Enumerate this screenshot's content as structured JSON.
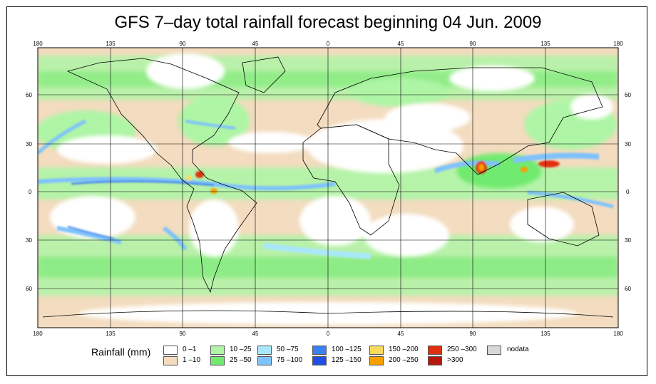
{
  "title": "GFS 7–day total rainfall forecast beginning 04 Jun. 2009",
  "map": {
    "lon_ticks": [
      "180",
      "135",
      "90",
      "45",
      "0",
      "45",
      "90",
      "135",
      "180"
    ],
    "lat_ticks": [
      "60",
      "30",
      "0",
      "30",
      "60"
    ],
    "colors": {
      "ocean_dry": "#ffffff",
      "light": "#f3dcbf",
      "green_light": "#aef5a6",
      "green": "#71ea6f",
      "cyan": "#a9e7fb",
      "sky": "#7fc2fb",
      "blue": "#3c7ff1",
      "deep_blue": "#1f4fe0",
      "yellow": "#f8da5d",
      "orange": "#f7a000",
      "red": "#e0300f",
      "dark_red": "#b5180f",
      "nodata": "#d7d7d7"
    }
  },
  "legend": {
    "title": "Rainfall (mm)",
    "items": [
      {
        "label": "0 –1",
        "color": "#ffffff"
      },
      {
        "label": "1 –10",
        "color": "#f3dcbf"
      },
      {
        "label": "10 –25",
        "color": "#aef5a6"
      },
      {
        "label": "25 –50",
        "color": "#71ea6f"
      },
      {
        "label": "50 –75",
        "color": "#a9e7fb"
      },
      {
        "label": "75 –100",
        "color": "#7fc2fb"
      },
      {
        "label": "100 –125",
        "color": "#3c7ff1"
      },
      {
        "label": "125 –150",
        "color": "#1f4fe0"
      },
      {
        "label": "150 –200",
        "color": "#f8da5d"
      },
      {
        "label": "200 –250",
        "color": "#f7a000"
      },
      {
        "label": "250 –300",
        "color": "#e0300f"
      },
      {
        "label": ">300",
        "color": "#b5180f"
      },
      {
        "label": "nodata",
        "color": "#d7d7d7"
      }
    ]
  }
}
